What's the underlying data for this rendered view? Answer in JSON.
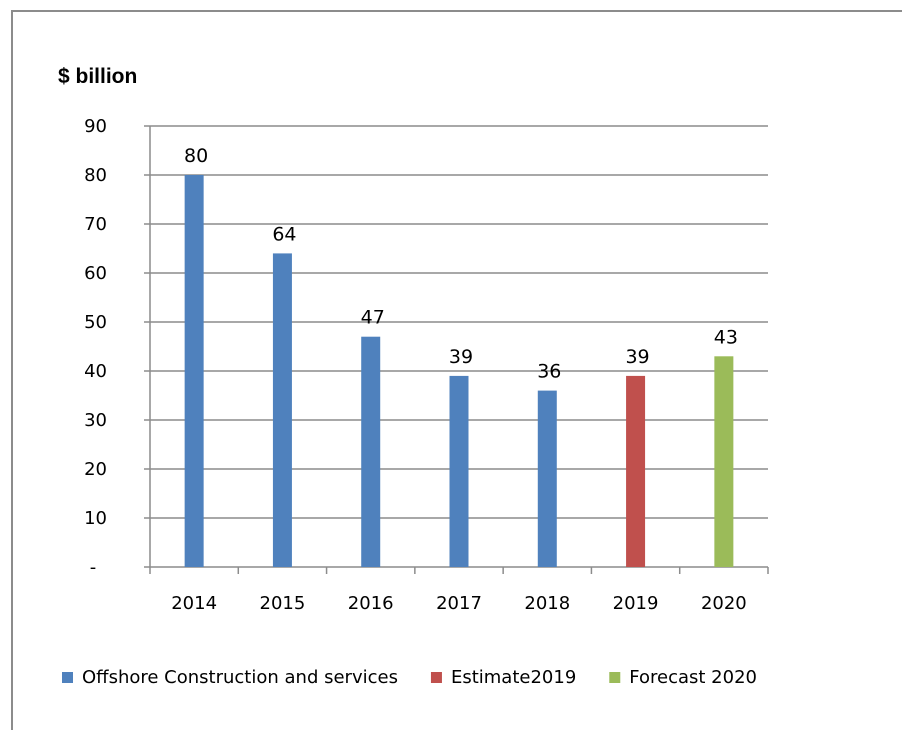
{
  "chart_data": {
    "type": "bar",
    "ylabel": "$ billion",
    "categories": [
      "2014",
      "2015",
      "2016",
      "2017",
      "2018",
      "2019",
      "2020"
    ],
    "y_ticks": [
      "-",
      "10",
      "20",
      "30",
      "40",
      "50",
      "60",
      "70",
      "80",
      "90"
    ],
    "ylim": [
      0,
      90
    ],
    "grid": true,
    "legend_position": "bottom",
    "series": [
      {
        "name": "Offshore Construction and services",
        "color": "#4f81bd",
        "values": [
          80,
          64,
          47,
          39,
          36,
          null,
          null
        ]
      },
      {
        "name": "Estimate2019",
        "color": "#c0504d",
        "values": [
          null,
          null,
          null,
          null,
          null,
          39,
          null
        ]
      },
      {
        "name": "Forecast 2020",
        "color": "#9bbb59",
        "values": [
          null,
          null,
          null,
          null,
          null,
          null,
          43
        ]
      }
    ],
    "data_labels": [
      "80",
      "64",
      "47",
      "39",
      "36",
      "39",
      "43"
    ]
  }
}
